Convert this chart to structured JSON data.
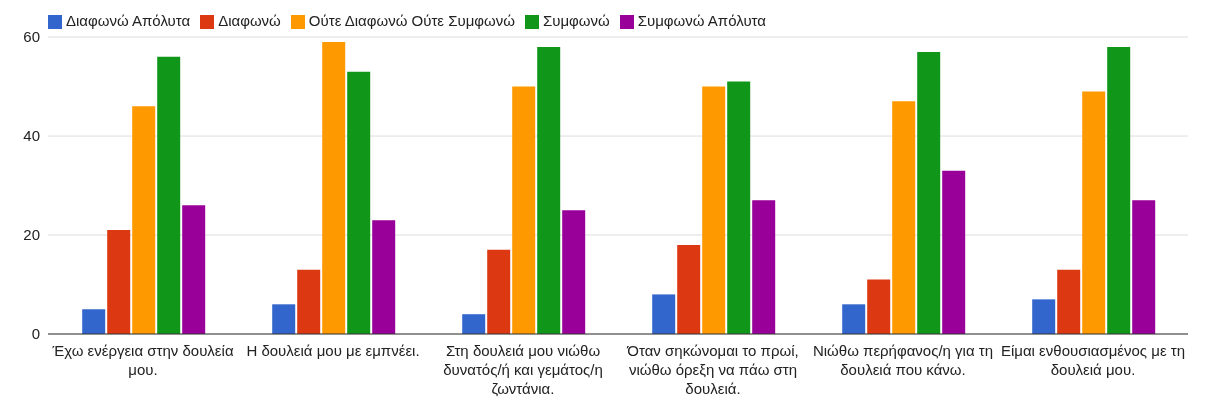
{
  "chart_data": {
    "type": "bar",
    "categories": [
      "Έχω ενέργεια στην δουλεία μου.",
      "Η δουλειά μου με εμπνέει.",
      "Στη δουλειά μου νιώθω δυνατός/ή και γεμάτος/η ζωντάνια.",
      "Όταν σηκώνομαι το πρωί, νιώθω όρεξη να πάω στη δουλειά.",
      "Νιώθω περήφανος/η για τη δουλειά που κάνω.",
      "Είμαι ενθουσιασμένος με τη δουλειά μου."
    ],
    "series": [
      {
        "name": "Διαφωνώ Απόλυτα",
        "color": "#3366cc",
        "values": [
          5,
          6,
          4,
          8,
          6,
          7
        ]
      },
      {
        "name": "Διαφωνώ",
        "color": "#dc3912",
        "values": [
          21,
          13,
          17,
          18,
          11,
          13
        ]
      },
      {
        "name": "Ούτε Διαφωνώ Ούτε Συμφωνώ",
        "color": "#ff9900",
        "values": [
          46,
          59,
          50,
          50,
          47,
          49
        ]
      },
      {
        "name": "Συμφωνώ",
        "color": "#109618",
        "values": [
          56,
          53,
          58,
          51,
          57,
          58
        ]
      },
      {
        "name": "Συμφωνώ Απόλυτα",
        "color": "#990099",
        "values": [
          26,
          23,
          25,
          27,
          33,
          27
        ]
      }
    ],
    "ylim": [
      0,
      60
    ],
    "yticks": [
      0,
      20,
      40,
      60
    ],
    "grid": "y",
    "legend": "top left"
  }
}
